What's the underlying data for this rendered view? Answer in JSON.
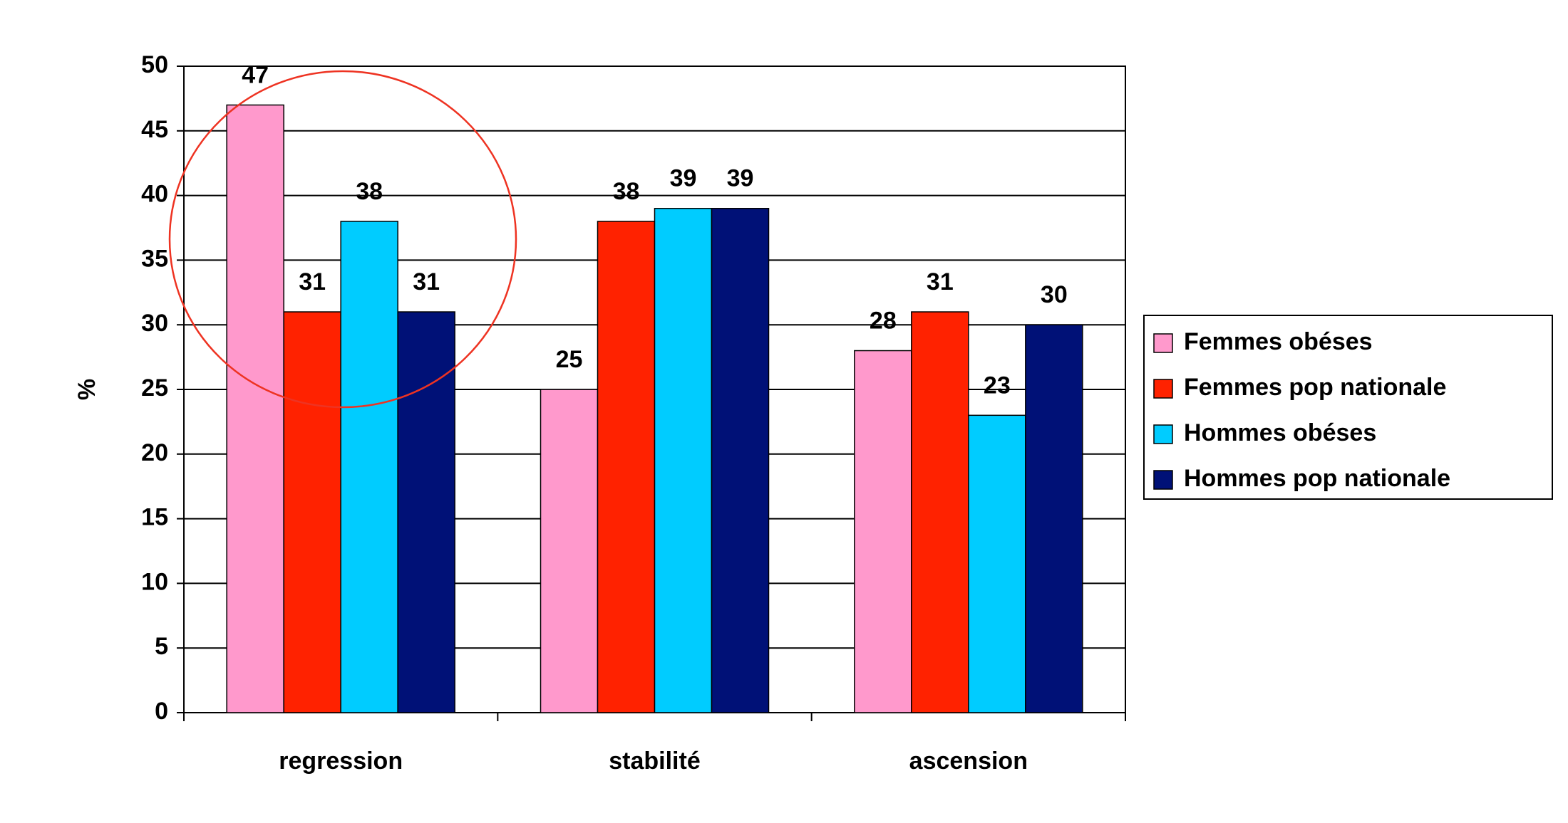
{
  "chart_data": {
    "type": "bar",
    "y_label": "%",
    "categories": [
      "regression",
      "stabilité",
      "ascension"
    ],
    "series": [
      {
        "name": "Femmes obéses",
        "color": "#ff99cc",
        "values": [
          47,
          25,
          28
        ]
      },
      {
        "name": "Femmes pop nationale",
        "color": "#ff2200",
        "values": [
          31,
          38,
          31
        ]
      },
      {
        "name": "Hommes obéses",
        "color": "#00ccff",
        "values": [
          38,
          39,
          23
        ]
      },
      {
        "name": "Hommes pop nationale",
        "color": "#001177",
        "values": [
          31,
          39,
          30
        ]
      }
    ],
    "ylim": [
      0,
      50
    ],
    "yticks": [
      0,
      5,
      10,
      15,
      20,
      25,
      30,
      35,
      40,
      45,
      50
    ],
    "grid": true,
    "legend": "right"
  }
}
